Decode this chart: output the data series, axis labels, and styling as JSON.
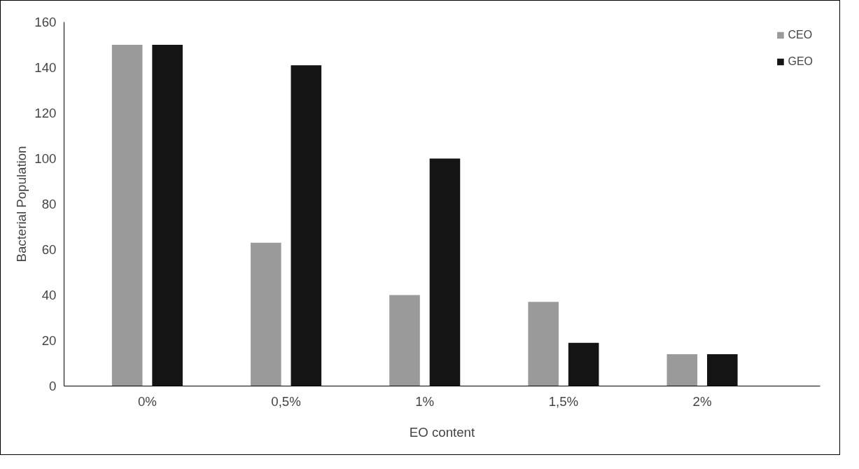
{
  "chart_data": {
    "type": "bar",
    "xlabel": "EO content",
    "ylabel": "Bacterial Population",
    "categories": [
      "0%",
      "0,5%",
      "1%",
      "1,5%",
      "2%"
    ],
    "series": [
      {
        "name": "CEO",
        "color": "#9a9a9a",
        "values": [
          150,
          63,
          40,
          37,
          14
        ]
      },
      {
        "name": "GEO",
        "color": "#141414",
        "values": [
          150,
          141,
          100,
          19,
          14
        ]
      }
    ],
    "ylim": [
      0,
      160
    ],
    "yticks": [
      0,
      20,
      40,
      60,
      80,
      100,
      120,
      140,
      160
    ],
    "grid": false,
    "legend": "top right"
  }
}
